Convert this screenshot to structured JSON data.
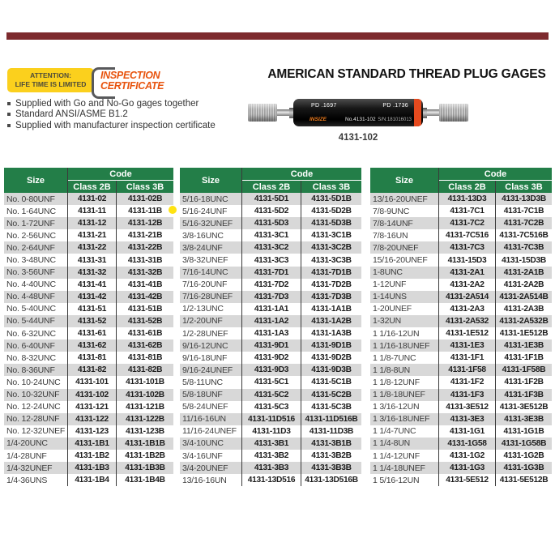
{
  "page": {
    "background": "#ffffff",
    "top_bar_color": "#7d2a2e"
  },
  "badges": {
    "attention": {
      "line1": "ATTENTION:",
      "line2": "LIFE TIME IS LIMITED",
      "bg_color": "#fbd01d"
    },
    "inspection_certificate": {
      "line1": "INSPECTION",
      "line2": "CERTIFICATE",
      "text_color": "#e8540e"
    }
  },
  "header": {
    "title": "AMERICAN STANDARD THREAD PLUG GAGES"
  },
  "features": {
    "item1": "Supplied with Go and No-Go gages together",
    "item2": "Standard ANSI/ASME B1.2",
    "item3": "Supplied with manufacturer inspection certificate"
  },
  "product": {
    "labels": {
      "pd_left": "PD .1697",
      "pd_right": "PD .1736",
      "brand": "INSIZE",
      "model_no": "No.4131-102",
      "serial": "S/N:181016013"
    },
    "caption": "4131-102"
  },
  "table_headers": {
    "size": "Size",
    "code": "Code",
    "class_2b": "Class 2B",
    "class_3b": "Class 3B"
  },
  "colors": {
    "header_green": "#237e48",
    "row_alt_gray": "#d8d8d8",
    "highlight_dot_yellow": "#ffe312"
  },
  "highlight": {
    "marked_size": "5/16-24UNF",
    "table": "t2",
    "row_index": 1
  },
  "tables": {
    "t1": {
      "rows": [
        [
          "No. 0-80UNF",
          "4131-02",
          "4131-02B"
        ],
        [
          "No. 1-64UNC",
          "4131-11",
          "4131-11B"
        ],
        [
          "No. 1-72UNF",
          "4131-12",
          "4131-12B"
        ],
        [
          "No. 2-56UNC",
          "4131-21",
          "4131-21B"
        ],
        [
          "No. 2-64UNF",
          "4131-22",
          "4131-22B"
        ],
        [
          "No. 3-48UNC",
          "4131-31",
          "4131-31B"
        ],
        [
          "No. 3-56UNF",
          "4131-32",
          "4131-32B"
        ],
        [
          "No. 4-40UNC",
          "4131-41",
          "4131-41B"
        ],
        [
          "No. 4-48UNF",
          "4131-42",
          "4131-42B"
        ],
        [
          "No. 5-40UNC",
          "4131-51",
          "4131-51B"
        ],
        [
          "No. 5-44UNF",
          "4131-52",
          "4131-52B"
        ],
        [
          "No. 6-32UNC",
          "4131-61",
          "4131-61B"
        ],
        [
          "No. 6-40UNF",
          "4131-62",
          "4131-62B"
        ],
        [
          "No. 8-32UNC",
          "4131-81",
          "4131-81B"
        ],
        [
          "No. 8-36UNF",
          "4131-82",
          "4131-82B"
        ],
        [
          "No. 10-24UNC",
          "4131-101",
          "4131-101B"
        ],
        [
          "No. 10-32UNF",
          "4131-102",
          "4131-102B"
        ],
        [
          "No. 12-24UNC",
          "4131-121",
          "4131-121B"
        ],
        [
          "No. 12-28UNF",
          "4131-122",
          "4131-122B"
        ],
        [
          "No. 12-32UNEF",
          "4131-123",
          "4131-123B"
        ],
        [
          "1/4-20UNC",
          "4131-1B1",
          "4131-1B1B"
        ],
        [
          "1/4-28UNF",
          "4131-1B2",
          "4131-1B2B"
        ],
        [
          "1/4-32UNEF",
          "4131-1B3",
          "4131-1B3B"
        ],
        [
          "1/4-36UNS",
          "4131-1B4",
          "4131-1B4B"
        ]
      ]
    },
    "t2": {
      "rows": [
        [
          "5/16-18UNC",
          "4131-5D1",
          "4131-5D1B"
        ],
        [
          "5/16-24UNF",
          "4131-5D2",
          "4131-5D2B"
        ],
        [
          "5/16-32UNEF",
          "4131-5D3",
          "4131-5D3B"
        ],
        [
          "3/8-16UNC",
          "4131-3C1",
          "4131-3C1B"
        ],
        [
          "3/8-24UNF",
          "4131-3C2",
          "4131-3C2B"
        ],
        [
          "3/8-32UNEF",
          "4131-3C3",
          "4131-3C3B"
        ],
        [
          "7/16-14UNC",
          "4131-7D1",
          "4131-7D1B"
        ],
        [
          "7/16-20UNF",
          "4131-7D2",
          "4131-7D2B"
        ],
        [
          "7/16-28UNEF",
          "4131-7D3",
          "4131-7D3B"
        ],
        [
          "1/2-13UNC",
          "4131-1A1",
          "4131-1A1B"
        ],
        [
          "1/2-20UNF",
          "4131-1A2",
          "4131-1A2B"
        ],
        [
          "1/2-28UNEF",
          "4131-1A3",
          "4131-1A3B"
        ],
        [
          "9/16-12UNC",
          "4131-9D1",
          "4131-9D1B"
        ],
        [
          "9/16-18UNF",
          "4131-9D2",
          "4131-9D2B"
        ],
        [
          "9/16-24UNEF",
          "4131-9D3",
          "4131-9D3B"
        ],
        [
          "5/8-11UNC",
          "4131-5C1",
          "4131-5C1B"
        ],
        [
          "5/8-18UNF",
          "4131-5C2",
          "4131-5C2B"
        ],
        [
          "5/8-24UNEF",
          "4131-5C3",
          "4131-5C3B"
        ],
        [
          "11/16-16UN",
          "4131-11D516",
          "4131-11D516B"
        ],
        [
          "11/16-24UNEF",
          "4131-11D3",
          "4131-11D3B"
        ],
        [
          "3/4-10UNC",
          "4131-3B1",
          "4131-3B1B"
        ],
        [
          "3/4-16UNF",
          "4131-3B2",
          "4131-3B2B"
        ],
        [
          "3/4-20UNEF",
          "4131-3B3",
          "4131-3B3B"
        ],
        [
          "13/16-16UN",
          "4131-13D516",
          "4131-13D516B"
        ]
      ]
    },
    "t3": {
      "rows": [
        [
          "13/16-20UNEF",
          "4131-13D3",
          "4131-13D3B"
        ],
        [
          "7/8-9UNC",
          "4131-7C1",
          "4131-7C1B"
        ],
        [
          "7/8-14UNF",
          "4131-7C2",
          "4131-7C2B"
        ],
        [
          "7/8-16UN",
          "4131-7C516",
          "4131-7C516B"
        ],
        [
          "7/8-20UNEF",
          "4131-7C3",
          "4131-7C3B"
        ],
        [
          "15/16-20UNEF",
          "4131-15D3",
          "4131-15D3B"
        ],
        [
          "1-8UNC",
          "4131-2A1",
          "4131-2A1B"
        ],
        [
          "1-12UNF",
          "4131-2A2",
          "4131-2A2B"
        ],
        [
          "1-14UNS",
          "4131-2A514",
          "4131-2A514B"
        ],
        [
          "1-20UNEF",
          "4131-2A3",
          "4131-2A3B"
        ],
        [
          "1-32UN",
          "4131-2A532",
          "4131-2A532B"
        ],
        [
          "1 1/16-12UN",
          "4131-1E512",
          "4131-1E512B"
        ],
        [
          "1 1/16-18UNEF",
          "4131-1E3",
          "4131-1E3B"
        ],
        [
          "1 1/8-7UNC",
          "4131-1F1",
          "4131-1F1B"
        ],
        [
          "1 1/8-8UN",
          "4131-1F58",
          "4131-1F58B"
        ],
        [
          "1 1/8-12UNF",
          "4131-1F2",
          "4131-1F2B"
        ],
        [
          "1 1/8-18UNEF",
          "4131-1F3",
          "4131-1F3B"
        ],
        [
          "1 3/16-12UN",
          "4131-3E512",
          "4131-3E512B"
        ],
        [
          "1 3/16-18UNEF",
          "4131-3E3",
          "4131-3E3B"
        ],
        [
          "1 1/4-7UNC",
          "4131-1G1",
          "4131-1G1B"
        ],
        [
          "1 1/4-8UN",
          "4131-1G58",
          "4131-1G58B"
        ],
        [
          "1 1/4-12UNF",
          "4131-1G2",
          "4131-1G2B"
        ],
        [
          "1 1/4-18UNEF",
          "4131-1G3",
          "4131-1G3B"
        ],
        [
          "1 5/16-12UN",
          "4131-5E512",
          "4131-5E512B"
        ]
      ]
    }
  }
}
